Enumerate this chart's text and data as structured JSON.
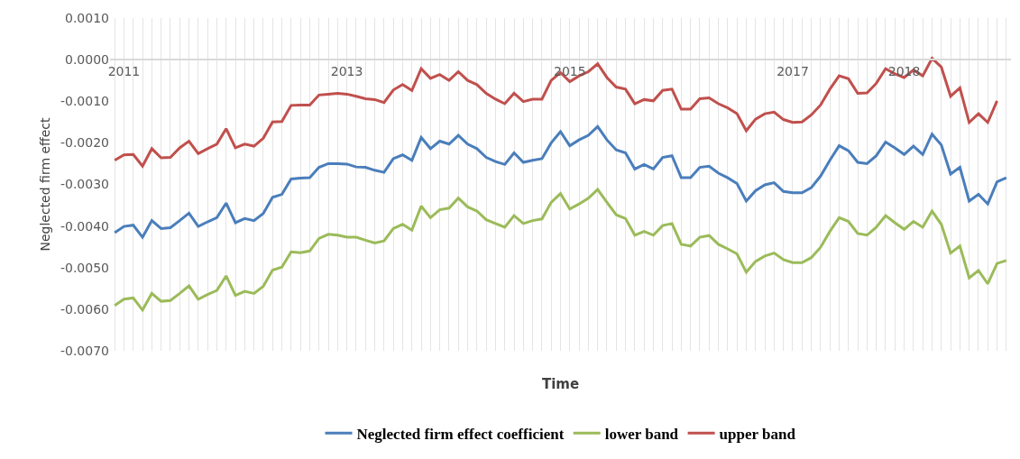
{
  "chart_data": {
    "type": "line",
    "xlabel": "Time",
    "ylabel": "Neglected firm effect",
    "categories": [
      null,
      "2011",
      null,
      null,
      null,
      null,
      null,
      null,
      null,
      null,
      null,
      null,
      null,
      null,
      null,
      null,
      null,
      null,
      null,
      null,
      null,
      null,
      null,
      null,
      null,
      "2013",
      null,
      null,
      null,
      null,
      null,
      null,
      null,
      null,
      null,
      null,
      null,
      null,
      null,
      null,
      null,
      null,
      null,
      null,
      null,
      null,
      null,
      null,
      null,
      "2015",
      null,
      null,
      null,
      null,
      null,
      null,
      null,
      null,
      null,
      null,
      null,
      null,
      null,
      null,
      null,
      null,
      null,
      null,
      null,
      null,
      null,
      null,
      null,
      "2017",
      null,
      null,
      null,
      null,
      null,
      null,
      null,
      null,
      null,
      null,
      null,
      "2018",
      null,
      null,
      null,
      null,
      null,
      null,
      null,
      null,
      null,
      null,
      null
    ],
    "series": [
      {
        "name": "Neglected firm effect coefficient",
        "color": "#4a7ebb",
        "values": [
          -0.00416,
          -0.00401,
          -0.00398,
          -0.00427,
          -0.00387,
          -0.00406,
          -0.00404,
          -0.00387,
          -0.00369,
          -0.00401,
          -0.0039,
          -0.0038,
          -0.00345,
          -0.00392,
          -0.00382,
          -0.00387,
          -0.0037,
          -0.00331,
          -0.00324,
          -0.00287,
          -0.00285,
          -0.00284,
          -0.00259,
          -0.0025,
          -0.0025,
          -0.00251,
          -0.00258,
          -0.00259,
          -0.00266,
          -0.00271,
          -0.00238,
          -0.00229,
          -0.00242,
          -0.00187,
          -0.00214,
          -0.00196,
          -0.00203,
          -0.00182,
          -0.00203,
          -0.00214,
          -0.00235,
          -0.00245,
          -0.00252,
          -0.00224,
          -0.00247,
          -0.00242,
          -0.00238,
          -0.002,
          -0.00173,
          -0.00207,
          -0.00193,
          -0.00182,
          -0.00161,
          -0.00193,
          -0.00217,
          -0.00224,
          -0.00263,
          -0.00252,
          -0.00263,
          -0.00235,
          -0.00231,
          -0.00284,
          -0.00284,
          -0.00259,
          -0.00256,
          -0.00273,
          -0.00284,
          -0.00298,
          -0.0034,
          -0.00315,
          -0.00301,
          -0.00296,
          -0.00317,
          -0.0032,
          -0.0032,
          -0.00308,
          -0.0028,
          -0.00242,
          -0.00207,
          -0.00219,
          -0.00247,
          -0.0025,
          -0.00231,
          -0.00198,
          -0.00212,
          -0.00228,
          -0.00208,
          -0.00228,
          -0.00179,
          -0.00205,
          -0.00275,
          -0.00259,
          -0.0034,
          -0.00324,
          -0.00347,
          -0.00294,
          -0.00284
        ]
      },
      {
        "name": "lower band",
        "color": "#9bbb59",
        "values": [
          -0.00591,
          -0.00576,
          -0.00573,
          -0.00602,
          -0.00562,
          -0.00581,
          -0.00579,
          -0.00562,
          -0.00544,
          -0.00576,
          -0.00565,
          -0.00555,
          -0.0052,
          -0.00567,
          -0.00557,
          -0.00562,
          -0.00545,
          -0.00506,
          -0.00499,
          -0.00462,
          -0.00464,
          -0.0046,
          -0.0043,
          -0.0042,
          -0.00422,
          -0.00427,
          -0.00427,
          -0.00434,
          -0.00441,
          -0.00436,
          -0.00406,
          -0.00396,
          -0.0041,
          -0.00352,
          -0.0038,
          -0.00361,
          -0.00357,
          -0.00333,
          -0.00354,
          -0.00364,
          -0.00385,
          -0.00394,
          -0.00403,
          -0.00375,
          -0.00394,
          -0.00387,
          -0.00383,
          -0.00343,
          -0.00322,
          -0.00359,
          -0.00347,
          -0.00333,
          -0.00312,
          -0.00343,
          -0.00373,
          -0.00382,
          -0.00422,
          -0.00413,
          -0.00422,
          -0.00399,
          -0.00394,
          -0.00444,
          -0.00448,
          -0.00427,
          -0.00423,
          -0.00444,
          -0.00455,
          -0.00467,
          -0.00511,
          -0.00485,
          -0.00472,
          -0.00465,
          -0.00481,
          -0.00488,
          -0.00488,
          -0.00476,
          -0.00451,
          -0.00413,
          -0.0038,
          -0.00389,
          -0.00418,
          -0.00422,
          -0.00403,
          -0.00375,
          -0.00392,
          -0.00408,
          -0.00389,
          -0.00403,
          -0.00364,
          -0.00396,
          -0.00465,
          -0.00448,
          -0.00525,
          -0.00507,
          -0.00539,
          -0.0049,
          -0.00483
        ]
      },
      {
        "name": "upper band",
        "color": "#c0504d",
        "values": [
          -0.00242,
          -0.00229,
          -0.00228,
          -0.00256,
          -0.00214,
          -0.00236,
          -0.00235,
          -0.00212,
          -0.00196,
          -0.00226,
          -0.00214,
          -0.00203,
          -0.00166,
          -0.00212,
          -0.00203,
          -0.00208,
          -0.00189,
          -0.0015,
          -0.00149,
          -0.0011,
          -0.00109,
          -0.00109,
          -0.00085,
          -0.00083,
          -0.00081,
          -0.00083,
          -0.00088,
          -0.00094,
          -0.00096,
          -0.00103,
          -0.00073,
          -0.0006,
          -0.00074,
          -0.00022,
          -0.00045,
          -0.00036,
          -0.0005,
          -0.00029,
          -0.0005,
          -0.0006,
          -0.00081,
          -0.00095,
          -0.00106,
          -0.00081,
          -0.00101,
          -0.00095,
          -0.00095,
          -0.0005,
          -0.00031,
          -0.00053,
          -0.00039,
          -0.00029,
          -0.0001,
          -0.00043,
          -0.00066,
          -0.00071,
          -0.00106,
          -0.00096,
          -0.00099,
          -0.00074,
          -0.00071,
          -0.00119,
          -0.00119,
          -0.00094,
          -0.00092,
          -0.00106,
          -0.00116,
          -0.0013,
          -0.00171,
          -0.00143,
          -0.0013,
          -0.00126,
          -0.00144,
          -0.00151,
          -0.0015,
          -0.00133,
          -0.00109,
          -0.00071,
          -0.00039,
          -0.00046,
          -0.00081,
          -0.0008,
          -0.00057,
          -0.00022,
          -0.00034,
          -0.00043,
          -0.00025,
          -0.00039,
          3e-05,
          -0.00018,
          -0.00088,
          -0.00068,
          -0.00151,
          -0.0013,
          -0.00151,
          -0.00099,
          null
        ]
      }
    ],
    "ylim": [
      -0.007,
      0.001
    ],
    "yticks": [
      {
        "value": 0.001,
        "label": "0.0010"
      },
      {
        "value": 0.0,
        "label": "0.0000"
      },
      {
        "value": -0.001,
        "label": "-0.0010"
      },
      {
        "value": -0.002,
        "label": "-0.0020"
      },
      {
        "value": -0.003,
        "label": "-0.0030"
      },
      {
        "value": -0.004,
        "label": "-0.0040"
      },
      {
        "value": -0.005,
        "label": "-0.0050"
      },
      {
        "value": -0.006,
        "label": "-0.0060"
      },
      {
        "value": -0.007,
        "label": "-0.0070"
      }
    ],
    "grid": "x",
    "legend": "bottom",
    "marker": "none",
    "line_style": "solid"
  }
}
